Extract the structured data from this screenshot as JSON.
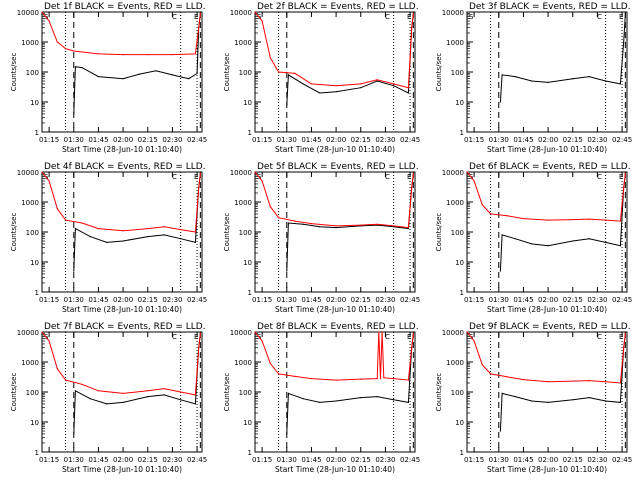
{
  "figure": {
    "background": "#ffffff",
    "colors": {
      "events": "#000000",
      "lld": "#ff0000"
    }
  },
  "chart_data": [
    {
      "type": "line",
      "title": "Det 1f BLACK = Events, RED = LLD.",
      "xlabel": "Start Time (28-Jun-10 01:10:40)",
      "ylabel": "Counts/sec",
      "yscale": "log",
      "ylim": [
        1,
        10000
      ],
      "xlim": [
        "01:10:40",
        "02:48:00"
      ],
      "x_tick_labels": [
        "01:15",
        "01:30",
        "01:45",
        "02:00",
        "02:15",
        "02:30",
        "02:45"
      ],
      "y_tick_labels": [
        "1",
        "10",
        "100",
        "1000",
        "10000"
      ],
      "markers_top": [
        "S",
        "E"
      ],
      "markers_mid": [
        "C"
      ],
      "series": [
        {
          "name": "Events",
          "color": "#000000",
          "x": [
            "01:30",
            "01:31",
            "01:35",
            "01:45",
            "02:00",
            "02:10",
            "02:20",
            "02:30",
            "02:40",
            "02:45",
            "02:46",
            "02:47"
          ],
          "y": [
            4,
            150,
            140,
            70,
            60,
            85,
            110,
            80,
            60,
            90,
            3000,
            9000
          ]
        },
        {
          "name": "LLD",
          "color": "#ff0000",
          "x": [
            "01:10:40",
            "01:15",
            "01:20",
            "01:25",
            "01:30",
            "01:45",
            "02:00",
            "02:15",
            "02:30",
            "02:44",
            "02:46",
            "02:47"
          ],
          "y": [
            10000,
            5000,
            1000,
            600,
            500,
            400,
            380,
            380,
            380,
            400,
            3000,
            9000
          ]
        }
      ],
      "vlines_dotted": [
        "01:25",
        "02:35",
        "02:45"
      ],
      "vlines_dashed": [
        "01:30",
        "02:47"
      ]
    },
    {
      "type": "line",
      "title": "Det 2f BLACK = Events, RED = LLD.",
      "xlabel": "Start Time (28-Jun-10 01:10:40)",
      "ylabel": "Counts/sec",
      "yscale": "log",
      "ylim": [
        1,
        10000
      ],
      "xlim": [
        "01:10:40",
        "02:48:00"
      ],
      "x_tick_labels": [
        "01:15",
        "01:30",
        "01:45",
        "02:00",
        "02:15",
        "02:30",
        "02:45"
      ],
      "y_tick_labels": [
        "1",
        "10",
        "100",
        "1000",
        "10000"
      ],
      "markers_top": [
        "S",
        "E"
      ],
      "markers_mid": [
        "C"
      ],
      "series": [
        {
          "name": "Events",
          "color": "#000000",
          "x": [
            "01:30",
            "01:31",
            "01:40",
            "01:50",
            "02:00",
            "02:15",
            "02:25",
            "02:35",
            "02:44",
            "02:46",
            "02:47"
          ],
          "y": [
            8,
            80,
            40,
            20,
            22,
            30,
            50,
            35,
            20,
            3000,
            9000
          ]
        },
        {
          "name": "LLD",
          "color": "#ff0000",
          "x": [
            "01:10:40",
            "01:15",
            "01:20",
            "01:25",
            "01:35",
            "01:45",
            "02:00",
            "02:15",
            "02:25",
            "02:35",
            "02:44",
            "02:46",
            "02:47"
          ],
          "y": [
            10000,
            5000,
            300,
            100,
            90,
            40,
            35,
            40,
            55,
            40,
            30,
            3000,
            9000
          ]
        }
      ],
      "vlines_dotted": [
        "01:25",
        "02:35",
        "02:45"
      ],
      "vlines_dashed": [
        "01:30",
        "02:47"
      ]
    },
    {
      "type": "line",
      "title": "Det 3f BLACK = Events, RED = LLD.",
      "xlabel": "Start Time (28-Jun-10 01:10:40)",
      "ylabel": "Counts/sec",
      "yscale": "log",
      "ylim": [
        1,
        10000
      ],
      "xlim": [
        "01:10:40",
        "02:48:00"
      ],
      "x_tick_labels": [
        "01:15",
        "01:30",
        "01:45",
        "02:00",
        "02:15",
        "02:30",
        "02:45"
      ],
      "y_tick_labels": [
        "1",
        "10",
        "100",
        "1000",
        "10000"
      ],
      "markers_top": [
        "S",
        "E"
      ],
      "markers_mid": [
        "C"
      ],
      "series": [
        {
          "name": "Events",
          "color": "#000000",
          "x": [
            "01:31",
            "01:32",
            "01:40",
            "01:50",
            "02:00",
            "02:15",
            "02:25",
            "02:35",
            "02:44",
            "02:46",
            "02:47"
          ],
          "y": [
            10,
            80,
            70,
            50,
            45,
            60,
            70,
            50,
            40,
            1000,
            9000
          ]
        }
      ],
      "vlines_dotted": [
        "01:25",
        "02:35",
        "02:45"
      ],
      "vlines_dashed": [
        "01:30",
        "02:47"
      ]
    },
    {
      "type": "line",
      "title": "Det 4f BLACK = Events, RED = LLD.",
      "xlabel": "Start Time (28-Jun-10 01:10:40)",
      "ylabel": "Counts/sec",
      "yscale": "log",
      "ylim": [
        1,
        10000
      ],
      "xlim": [
        "01:10:40",
        "02:48:00"
      ],
      "x_tick_labels": [
        "01:15",
        "01:30",
        "01:45",
        "02:00",
        "02:15",
        "02:30",
        "02:45"
      ],
      "y_tick_labels": [
        "1",
        "10",
        "100",
        "1000",
        "10000"
      ],
      "markers_top": [
        "S",
        "E"
      ],
      "markers_mid": [
        "C"
      ],
      "series": [
        {
          "name": "Events",
          "color": "#000000",
          "x": [
            "01:30",
            "01:31",
            "01:40",
            "01:50",
            "02:00",
            "02:15",
            "02:25",
            "02:35",
            "02:44",
            "02:46",
            "02:47"
          ],
          "y": [
            5,
            130,
            70,
            45,
            50,
            70,
            80,
            60,
            45,
            3000,
            9000
          ]
        },
        {
          "name": "LLD",
          "color": "#ff0000",
          "x": [
            "01:10:40",
            "01:15",
            "01:20",
            "01:25",
            "01:35",
            "01:45",
            "02:00",
            "02:15",
            "02:25",
            "02:35",
            "02:44",
            "02:46",
            "02:47"
          ],
          "y": [
            10000,
            5000,
            600,
            250,
            200,
            130,
            110,
            130,
            150,
            120,
            100,
            3000,
            9000
          ]
        }
      ],
      "vlines_dotted": [
        "01:25",
        "02:35",
        "02:45"
      ],
      "vlines_dashed": [
        "01:30",
        "02:47"
      ]
    },
    {
      "type": "line",
      "title": "Det 5f BLACK = Events, RED = LLD.",
      "xlabel": "Start Time (28-Jun-10 01:10:40)",
      "ylabel": "Counts/sec",
      "yscale": "log",
      "ylim": [
        1,
        10000
      ],
      "xlim": [
        "01:10:40",
        "02:48:00"
      ],
      "x_tick_labels": [
        "01:15",
        "01:30",
        "01:45",
        "02:00",
        "02:15",
        "02:30",
        "02:45"
      ],
      "y_tick_labels": [
        "1",
        "10",
        "100",
        "1000",
        "10000"
      ],
      "markers_top": [
        "S",
        "E"
      ],
      "markers_mid": [
        "C"
      ],
      "series": [
        {
          "name": "Events",
          "color": "#000000",
          "x": [
            "01:30",
            "01:31",
            "01:40",
            "01:50",
            "02:00",
            "02:15",
            "02:25",
            "02:35",
            "02:44",
            "02:46",
            "02:47"
          ],
          "y": [
            5,
            200,
            180,
            150,
            140,
            160,
            170,
            150,
            130,
            3000,
            9000
          ]
        },
        {
          "name": "LLD",
          "color": "#ff0000",
          "x": [
            "01:10:40",
            "01:15",
            "01:20",
            "01:25",
            "01:35",
            "01:45",
            "02:00",
            "02:15",
            "02:25",
            "02:35",
            "02:44",
            "02:46",
            "02:47"
          ],
          "y": [
            10000,
            5000,
            700,
            300,
            230,
            190,
            160,
            170,
            180,
            160,
            140,
            3000,
            9000
          ]
        }
      ],
      "vlines_dotted": [
        "01:25",
        "02:35",
        "02:45"
      ],
      "vlines_dashed": [
        "01:30",
        "02:47"
      ]
    },
    {
      "type": "line",
      "title": "Det 6f BLACK = Events, RED = LLD.",
      "xlabel": "Start Time (28-Jun-10 01:10:40)",
      "ylabel": "Counts/sec",
      "yscale": "log",
      "ylim": [
        1,
        10000
      ],
      "xlim": [
        "01:10:40",
        "02:48:00"
      ],
      "x_tick_labels": [
        "01:15",
        "01:30",
        "01:45",
        "02:00",
        "02:15",
        "02:30",
        "02:45"
      ],
      "y_tick_labels": [
        "1",
        "10",
        "100",
        "1000",
        "10000"
      ],
      "markers_top": [
        "S",
        "E"
      ],
      "markers_mid": [
        "C"
      ],
      "series": [
        {
          "name": "Events",
          "color": "#000000",
          "x": [
            "01:31",
            "01:32",
            "01:40",
            "01:50",
            "02:00",
            "02:15",
            "02:25",
            "02:35",
            "02:44",
            "02:46",
            "02:47"
          ],
          "y": [
            5,
            80,
            60,
            40,
            35,
            50,
            60,
            45,
            35,
            3000,
            9000
          ]
        },
        {
          "name": "LLD",
          "color": "#ff0000",
          "x": [
            "01:10:40",
            "01:15",
            "01:20",
            "01:25",
            "01:35",
            "01:45",
            "02:00",
            "02:15",
            "02:25",
            "02:35",
            "02:44",
            "02:46",
            "02:47"
          ],
          "y": [
            10000,
            5000,
            800,
            400,
            350,
            280,
            250,
            260,
            270,
            250,
            230,
            3000,
            9000
          ]
        }
      ],
      "vlines_dotted": [
        "01:25",
        "02:35",
        "02:45"
      ],
      "vlines_dashed": [
        "01:30",
        "02:47"
      ]
    },
    {
      "type": "line",
      "title": "Det 7f BLACK = Events, RED = LLD.",
      "xlabel": "Start Time (28-Jun-10 01:10:40)",
      "ylabel": "Counts/sec",
      "yscale": "log",
      "ylim": [
        1,
        10000
      ],
      "xlim": [
        "01:10:40",
        "02:48:00"
      ],
      "x_tick_labels": [
        "01:15",
        "01:30",
        "01:45",
        "02:00",
        "02:15",
        "02:30",
        "02:45"
      ],
      "y_tick_labels": [
        "1",
        "10",
        "100",
        "1000",
        "10000"
      ],
      "markers_top": [
        "S",
        "E"
      ],
      "markers_mid": [
        "C"
      ],
      "series": [
        {
          "name": "Events",
          "color": "#000000",
          "x": [
            "01:30",
            "01:31",
            "01:40",
            "01:50",
            "02:00",
            "02:15",
            "02:25",
            "02:35",
            "02:44",
            "02:46",
            "02:47"
          ],
          "y": [
            4,
            110,
            60,
            40,
            45,
            70,
            80,
            55,
            40,
            3000,
            9000
          ]
        },
        {
          "name": "LLD",
          "color": "#ff0000",
          "x": [
            "01:10:40",
            "01:15",
            "01:20",
            "01:25",
            "01:35",
            "01:45",
            "02:00",
            "02:15",
            "02:25",
            "02:35",
            "02:44",
            "02:46",
            "02:47"
          ],
          "y": [
            10000,
            5000,
            600,
            250,
            180,
            110,
            90,
            110,
            130,
            100,
            80,
            3000,
            9000
          ]
        }
      ],
      "vlines_dotted": [
        "01:25",
        "02:35",
        "02:45"
      ],
      "vlines_dashed": [
        "01:30",
        "02:47"
      ]
    },
    {
      "type": "line",
      "title": "Det 8f BLACK = Events, RED = LLD.",
      "xlabel": "Start Time (28-Jun-10 01:10:40)",
      "ylabel": "Counts/sec",
      "yscale": "log",
      "ylim": [
        1,
        10000
      ],
      "xlim": [
        "01:10:40",
        "02:48:00"
      ],
      "x_tick_labels": [
        "01:15",
        "01:30",
        "01:45",
        "02:00",
        "02:15",
        "02:30",
        "02:45"
      ],
      "y_tick_labels": [
        "1",
        "10",
        "100",
        "1000",
        "10000"
      ],
      "markers_top": [
        "S",
        "E"
      ],
      "markers_mid": [
        "C"
      ],
      "series": [
        {
          "name": "Events",
          "color": "#000000",
          "x": [
            "01:30",
            "01:31",
            "01:40",
            "01:50",
            "02:00",
            "02:15",
            "02:25",
            "02:35",
            "02:44",
            "02:46",
            "02:47"
          ],
          "y": [
            4,
            90,
            60,
            45,
            50,
            65,
            70,
            55,
            45,
            3000,
            9000
          ]
        },
        {
          "name": "LLD",
          "color": "#ff0000",
          "x": [
            "01:10:40",
            "01:15",
            "01:20",
            "01:25",
            "01:35",
            "01:45",
            "02:00",
            "02:15",
            "02:25",
            "02:26",
            "02:27",
            "02:28",
            "02:29",
            "02:35",
            "02:44",
            "02:46",
            "02:47"
          ],
          "y": [
            10000,
            5000,
            900,
            400,
            330,
            280,
            250,
            270,
            280,
            10000,
            280,
            10000,
            300,
            280,
            250,
            3000,
            9000
          ]
        }
      ],
      "vlines_dotted": [
        "01:25",
        "02:35",
        "02:45"
      ],
      "vlines_dashed": [
        "01:30",
        "02:47"
      ]
    },
    {
      "type": "line",
      "title": "Det 9f BLACK = Events, RED = LLD.",
      "xlabel": "Start Time (28-Jun-10 01:10:40)",
      "ylabel": "Counts/sec",
      "yscale": "log",
      "ylim": [
        1,
        10000
      ],
      "xlim": [
        "01:10:40",
        "02:48:00"
      ],
      "x_tick_labels": [
        "01:15",
        "01:30",
        "01:45",
        "02:00",
        "02:15",
        "02:30",
        "02:45"
      ],
      "y_tick_labels": [
        "1",
        "10",
        "100",
        "1000",
        "10000"
      ],
      "markers_top": [
        "S",
        "E"
      ],
      "markers_mid": [
        "C"
      ],
      "series": [
        {
          "name": "Events",
          "color": "#000000",
          "x": [
            "01:31",
            "01:32",
            "01:40",
            "01:50",
            "02:00",
            "02:15",
            "02:25",
            "02:35",
            "02:44",
            "02:46",
            "02:47"
          ],
          "y": [
            5,
            90,
            70,
            50,
            45,
            55,
            65,
            50,
            45,
            3000,
            9000
          ]
        },
        {
          "name": "LLD",
          "color": "#ff0000",
          "x": [
            "01:10:40",
            "01:15",
            "01:20",
            "01:25",
            "01:35",
            "01:45",
            "02:00",
            "02:15",
            "02:25",
            "02:35",
            "02:44",
            "02:46",
            "02:47"
          ],
          "y": [
            10000,
            5000,
            800,
            400,
            320,
            260,
            220,
            230,
            240,
            220,
            200,
            3000,
            9000
          ]
        }
      ],
      "vlines_dotted": [
        "01:25",
        "02:35",
        "02:45"
      ],
      "vlines_dashed": [
        "01:30",
        "02:47"
      ]
    }
  ]
}
